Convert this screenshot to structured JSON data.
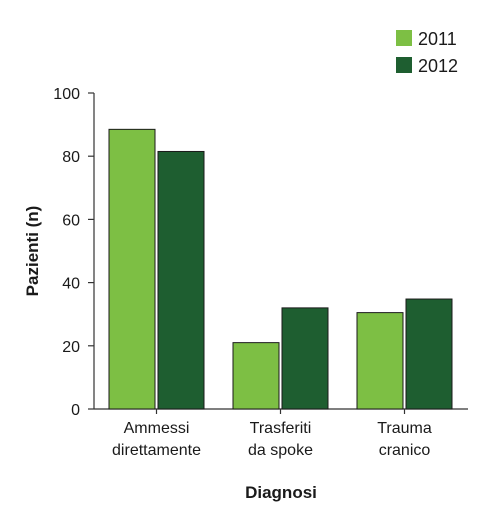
{
  "chart_data": {
    "type": "bar",
    "categories": [
      [
        "Ammessi",
        "direttamente"
      ],
      [
        "Trasferiti",
        "da spoke"
      ],
      [
        "Trauma",
        "cranico"
      ]
    ],
    "series": [
      {
        "name": "2011",
        "values": [
          88.5,
          21,
          30.5
        ],
        "color": "#7dbf44"
      },
      {
        "name": "2012",
        "values": [
          81.5,
          32,
          34.8
        ],
        "color": "#1e5e30"
      }
    ],
    "xlabel": "Diagnosi",
    "ylabel": "Pazienti (n)",
    "ylim": [
      0,
      100
    ],
    "yticks": [
      0,
      20,
      40,
      60,
      80,
      100
    ],
    "grid": false,
    "legend_position": "top-right"
  }
}
